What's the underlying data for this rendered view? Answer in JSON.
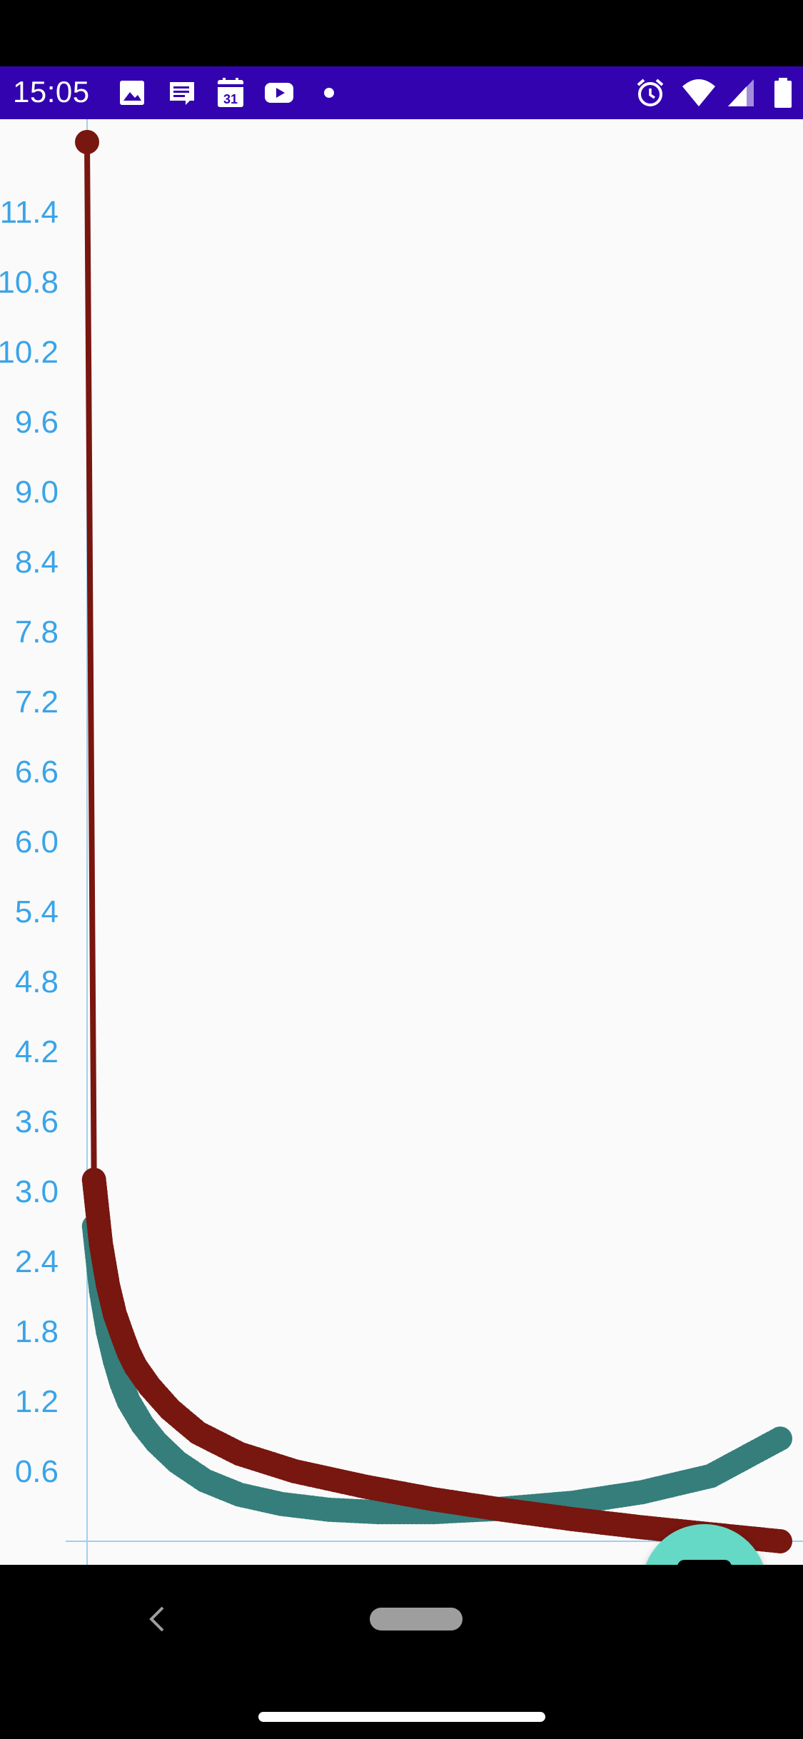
{
  "status_bar": {
    "time": "15:05",
    "left_icons": [
      "image-icon",
      "message-icon",
      "calendar-icon",
      "youtube-icon",
      "dot-icon"
    ],
    "calendar_day": "31",
    "right_icons": [
      "alarm-icon",
      "wifi-icon",
      "signal-icon",
      "battery-icon"
    ]
  },
  "colors": {
    "status_bar": "#3303b0",
    "axis": "#9fd0ee",
    "tick_label": "#3aa4e8",
    "series_teal": "#357e7b",
    "series_red": "#781610",
    "fab": "#66d9c6"
  },
  "chart_data": {
    "type": "line",
    "ylim": [
      0,
      12.0
    ],
    "y_ticks": [
      "0.6",
      "1.2",
      "1.8",
      "2.4",
      "3.0",
      "3.6",
      "4.2",
      "4.8",
      "5.4",
      "6.0",
      "6.6",
      "7.2",
      "7.8",
      "8.4",
      "9.0",
      "9.6",
      "10.2",
      "10.8",
      "11.4"
    ],
    "grid": false,
    "legend": "none",
    "series": [
      {
        "color": "#357e7b",
        "points": [
          [
            0.01,
            2.7
          ],
          [
            0.02,
            2.15
          ],
          [
            0.03,
            1.8
          ],
          [
            0.04,
            1.55
          ],
          [
            0.05,
            1.35
          ],
          [
            0.06,
            1.2
          ],
          [
            0.08,
            1.0
          ],
          [
            0.1,
            0.85
          ],
          [
            0.13,
            0.68
          ],
          [
            0.17,
            0.52
          ],
          [
            0.22,
            0.4
          ],
          [
            0.28,
            0.32
          ],
          [
            0.35,
            0.27
          ],
          [
            0.42,
            0.25
          ],
          [
            0.5,
            0.25
          ],
          [
            0.6,
            0.28
          ],
          [
            0.7,
            0.33
          ],
          [
            0.8,
            0.42
          ],
          [
            0.9,
            0.56
          ],
          [
            1.0,
            0.88
          ]
        ]
      },
      {
        "color": "#781610",
        "points": [
          [
            0.0,
            12.0
          ],
          [
            0.01,
            3.1
          ],
          [
            0.02,
            2.55
          ],
          [
            0.03,
            2.2
          ],
          [
            0.04,
            1.95
          ],
          [
            0.05,
            1.78
          ],
          [
            0.06,
            1.62
          ],
          [
            0.07,
            1.5
          ],
          [
            0.09,
            1.33
          ],
          [
            0.12,
            1.13
          ],
          [
            0.16,
            0.93
          ],
          [
            0.22,
            0.75
          ],
          [
            0.3,
            0.6
          ],
          [
            0.4,
            0.47
          ],
          [
            0.5,
            0.36
          ],
          [
            0.6,
            0.27
          ],
          [
            0.7,
            0.19
          ],
          [
            0.8,
            0.12
          ],
          [
            0.9,
            0.06
          ],
          [
            1.0,
            0.0
          ]
        ]
      }
    ]
  }
}
